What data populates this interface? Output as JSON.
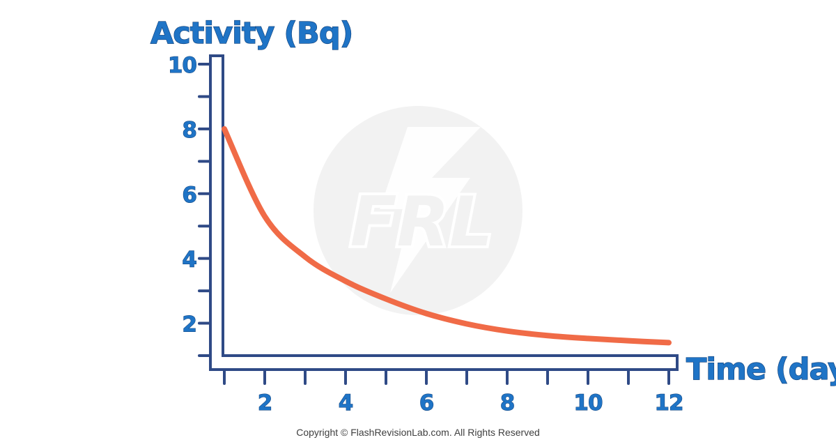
{
  "chart_data": {
    "type": "line",
    "ylabel": "Activity (Bq)",
    "xlabel": "Time (days)",
    "xlim": [
      1,
      12
    ],
    "ylim": [
      1,
      10
    ],
    "x_tick_labels": [
      "2",
      "4",
      "6",
      "8",
      "10",
      "12"
    ],
    "y_tick_labels": [
      "10",
      "8",
      "6",
      "4",
      "2"
    ],
    "x_ticks": [
      1,
      2,
      3,
      4,
      5,
      6,
      7,
      8,
      9,
      10,
      11,
      12
    ],
    "y_ticks": [
      1,
      2,
      3,
      4,
      5,
      6,
      7,
      8,
      9,
      10
    ],
    "grid": false,
    "series": [
      {
        "values": [
          [
            1,
            8.0
          ],
          [
            2,
            5.3
          ],
          [
            3,
            4.05
          ],
          [
            4,
            3.3
          ],
          [
            5,
            2.75
          ],
          [
            6,
            2.3
          ],
          [
            7,
            1.98
          ],
          [
            8,
            1.76
          ],
          [
            9,
            1.62
          ],
          [
            10,
            1.53
          ],
          [
            11,
            1.46
          ],
          [
            12,
            1.4
          ]
        ]
      }
    ]
  },
  "watermark": {
    "text": "FRL"
  },
  "copyright": "Copyright © FlashRevisionLab.com. All Rights Reserved",
  "colors": {
    "axis": "#2f4a86",
    "curve": "#f06b47",
    "label": "#1f74c6",
    "watermark": "#f3f3f3"
  }
}
